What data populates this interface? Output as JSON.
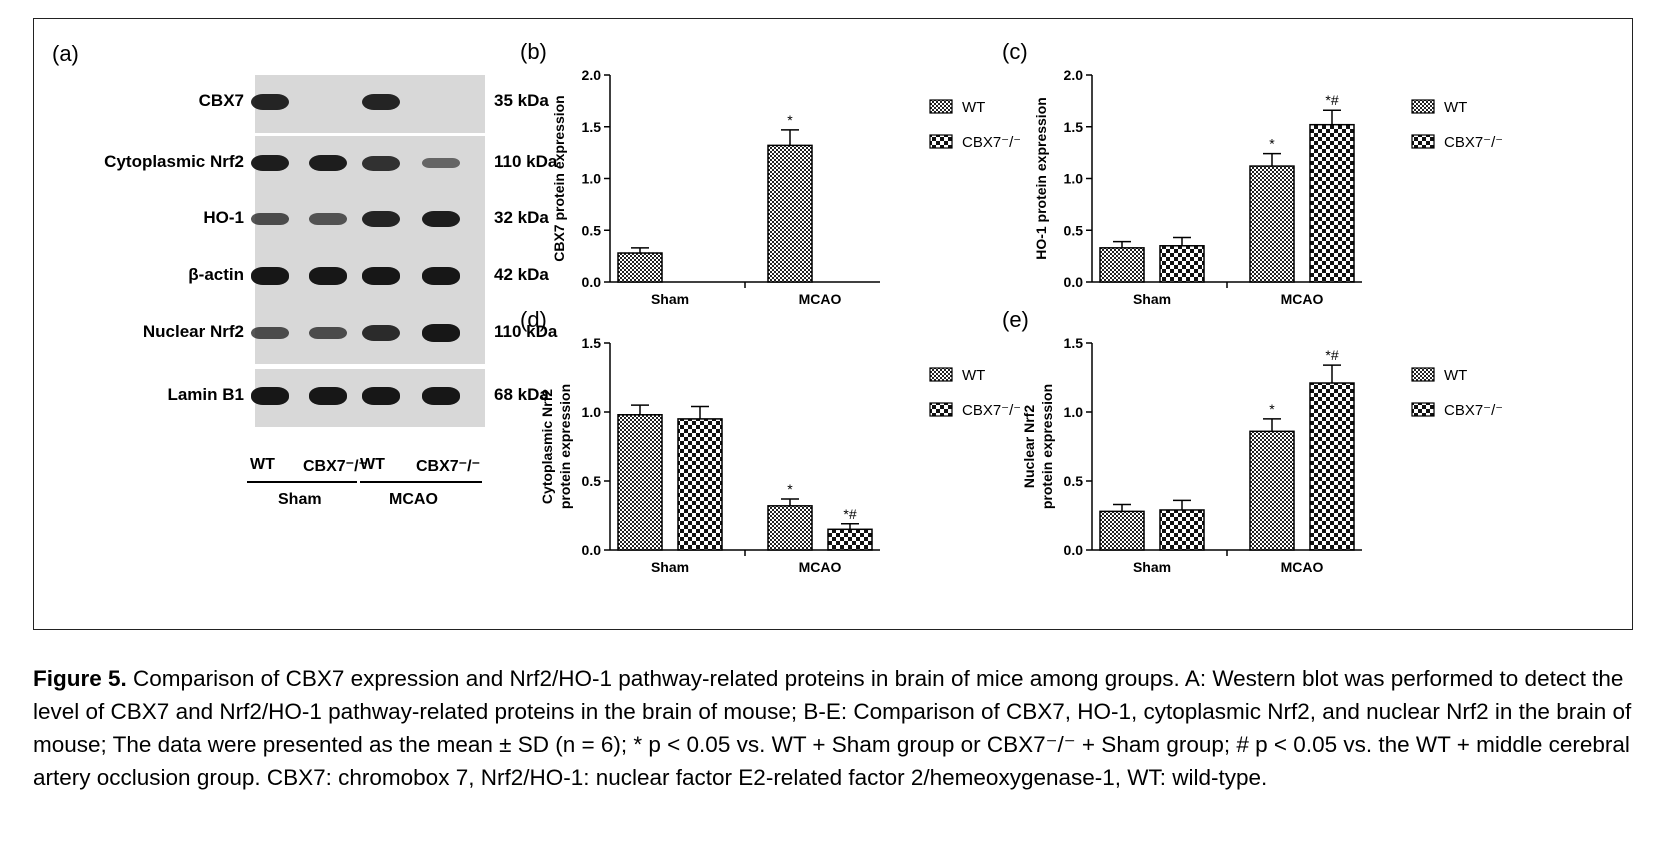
{
  "figure": {
    "panels": {
      "a": "(a)",
      "b": "(b)",
      "c": "(c)",
      "d": "(d)",
      "e": "(e)"
    },
    "blot": {
      "rows": [
        {
          "label": "CBX7",
          "kda": "35 kDa",
          "bands": [
            0.85,
            0,
            0.85,
            0
          ]
        },
        {
          "label": "Cytoplasmic Nrf2",
          "kda": "110 kDa",
          "bands": [
            0.9,
            0.9,
            0.75,
            0.35
          ]
        },
        {
          "label": "HO-1",
          "kda": "32 kDa",
          "bands": [
            0.55,
            0.5,
            0.85,
            0.9
          ]
        },
        {
          "label": "β-actin",
          "kda": "42 kDa",
          "bands": [
            0.95,
            0.95,
            0.95,
            0.95
          ]
        },
        {
          "label": "Nuclear Nrf2",
          "kda": "110 kDa",
          "bands": [
            0.55,
            0.55,
            0.8,
            0.95
          ]
        },
        {
          "label": "Lamin B1",
          "kda": "68 kDa",
          "bands": [
            0.95,
            0.95,
            0.95,
            0.95
          ]
        }
      ],
      "lanes": [
        "WT",
        "CBX7⁻/⁻",
        "WT",
        "CBX7⁻/⁻"
      ],
      "groups": [
        "Sham",
        "MCAO"
      ]
    },
    "legend": {
      "wt": "WT",
      "ko": "CBX7⁻/⁻"
    }
  },
  "chart_data": [
    {
      "type": "bar",
      "panel": "b",
      "categories": [
        "Sham",
        "MCAO"
      ],
      "ylabel": "CBX7 protein  expression",
      "ylim": [
        0,
        2.0
      ],
      "yticks": [
        "0.0",
        "0.5",
        "1.0",
        "1.5",
        "2.0"
      ],
      "series": [
        {
          "name": "WT",
          "values": [
            0.28,
            1.32
          ],
          "errors": [
            0.05,
            0.15
          ]
        },
        {
          "name": "CBX7⁻/⁻",
          "values": [
            0,
            0
          ],
          "errors": [
            0,
            0
          ]
        }
      ],
      "annotations": [
        [
          "",
          "*"
        ],
        [
          "",
          ""
        ]
      ]
    },
    {
      "type": "bar",
      "panel": "c",
      "categories": [
        "Sham",
        "MCAO"
      ],
      "ylabel": "HO-1 protein expression",
      "ylim": [
        0,
        2.0
      ],
      "yticks": [
        "0.0",
        "0.5",
        "1.0",
        "1.5",
        "2.0"
      ],
      "series": [
        {
          "name": "WT",
          "values": [
            0.33,
            1.12
          ],
          "errors": [
            0.06,
            0.12
          ]
        },
        {
          "name": "CBX7⁻/⁻",
          "values": [
            0.35,
            1.52
          ],
          "errors": [
            0.08,
            0.14
          ]
        }
      ],
      "annotations": [
        [
          "",
          "*"
        ],
        [
          "",
          "*#"
        ]
      ]
    },
    {
      "type": "bar",
      "panel": "d",
      "categories": [
        "Sham",
        "MCAO"
      ],
      "ylabel": [
        "Cytoplasmic Nrf2",
        "protein expression"
      ],
      "ylim": [
        0,
        1.5
      ],
      "yticks": [
        "0.0",
        "0.5",
        "1.0",
        "1.5"
      ],
      "series": [
        {
          "name": "WT",
          "values": [
            0.98,
            0.32
          ],
          "errors": [
            0.07,
            0.05
          ]
        },
        {
          "name": "CBX7⁻/⁻",
          "values": [
            0.95,
            0.15
          ],
          "errors": [
            0.09,
            0.04
          ]
        }
      ],
      "annotations": [
        [
          "",
          "*"
        ],
        [
          "",
          "*#"
        ]
      ]
    },
    {
      "type": "bar",
      "panel": "e",
      "categories": [
        "Sham",
        "MCAO"
      ],
      "ylabel": [
        "Nuclear Nrf2",
        "protein expression"
      ],
      "ylim": [
        0,
        1.5
      ],
      "yticks": [
        "0.0",
        "0.5",
        "1.0",
        "1.5"
      ],
      "series": [
        {
          "name": "WT",
          "values": [
            0.28,
            0.86
          ],
          "errors": [
            0.05,
            0.09
          ]
        },
        {
          "name": "CBX7⁻/⁻",
          "values": [
            0.29,
            1.21
          ],
          "errors": [
            0.07,
            0.13
          ]
        }
      ],
      "annotations": [
        [
          "",
          "*"
        ],
        [
          "",
          "*#"
        ]
      ]
    }
  ],
  "caption": {
    "title": "Figure 5.",
    "text": "Comparison of CBX7 expression and Nrf2/HO-1 pathway-related proteins in brain of mice among groups. A: Western blot was performed to detect the level of CBX7 and Nrf2/HO-1 pathway-related proteins in the brain of mouse; B-E: Comparison of CBX7, HO-1, cytoplasmic Nrf2, and nuclear Nrf2 in the brain of mouse; The data were presented as the mean ± SD (n = 6); * p < 0.05 vs. WT + Sham group or CBX7⁻/⁻ + Sham group; # p < 0.05 vs. the WT + middle cerebral artery occlusion group. CBX7: chromobox 7, Nrf2/HO-1: nuclear factor E2-related factor 2/hemeoxygenase-1, WT: wild-type."
  }
}
